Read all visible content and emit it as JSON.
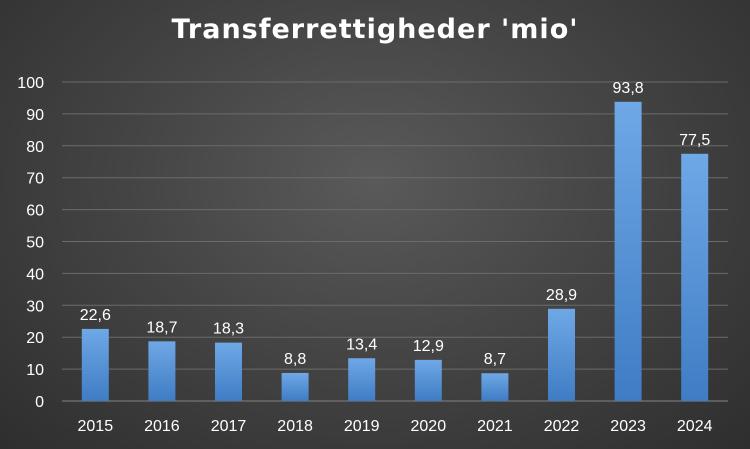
{
  "chart_data": {
    "type": "bar",
    "title": "Transferrettigheder 'mio'",
    "xlabel": "",
    "ylabel": "",
    "categories": [
      "2015",
      "2016",
      "2017",
      "2018",
      "2019",
      "2020",
      "2021",
      "2022",
      "2023",
      "2024"
    ],
    "values": [
      22.6,
      18.7,
      18.3,
      8.8,
      13.4,
      12.9,
      8.7,
      28.9,
      93.8,
      77.5
    ],
    "value_labels": [
      "22,6",
      "18,7",
      "18,3",
      "8,8",
      "13,4",
      "12,9",
      "8,7",
      "28,9",
      "93,8",
      "77,5"
    ],
    "ylim": [
      0,
      100
    ],
    "yticks": [
      "0",
      "10",
      "20",
      "30",
      "40",
      "50",
      "60",
      "70",
      "80",
      "90",
      "100"
    ],
    "grid": true,
    "legend": "none",
    "colors": {
      "bar_top": "#6fa8e6",
      "bar_bottom": "#3f7cc4",
      "text": "#ffffff",
      "gridline": "#6b6b6b"
    }
  }
}
